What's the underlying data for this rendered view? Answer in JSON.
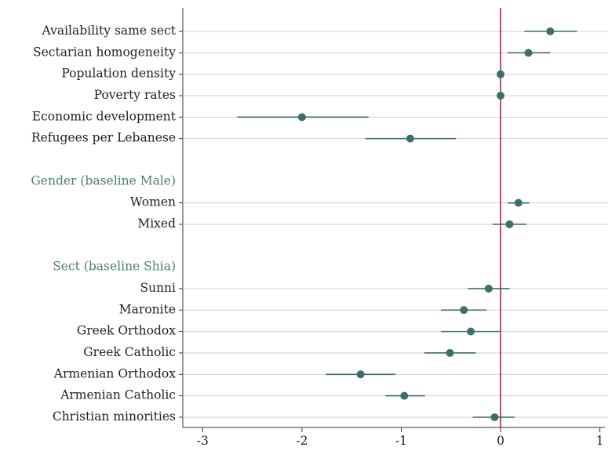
{
  "chart_data": {
    "type": "coefplot",
    "xlim": [
      -3.2,
      1.05
    ],
    "xticks": [
      -3,
      -2,
      -1,
      0,
      1
    ],
    "refline": 0,
    "refline_color": "#a6173f",
    "color": "#3d6e6b",
    "header_color": "#4d7d79",
    "grid": true,
    "groups": [
      {
        "title": null,
        "categories": [
          "Availability same sect",
          "Sectarian homogeneity",
          "Population density",
          "Poverty rates",
          "Economic development",
          "Refugees per Lebanese"
        ],
        "values": [
          0.5,
          0.28,
          0.0,
          0.0,
          -2.0,
          -0.91
        ],
        "lower": [
          0.24,
          0.07,
          0.0,
          0.0,
          -2.65,
          -1.36
        ],
        "upper": [
          0.77,
          0.5,
          0.0,
          0.0,
          -1.33,
          -0.45
        ]
      },
      {
        "title": "Gender (baseline Male)",
        "categories": [
          "Women",
          "Mixed"
        ],
        "values": [
          0.18,
          0.09
        ],
        "lower": [
          0.07,
          -0.08
        ],
        "upper": [
          0.29,
          0.26
        ]
      },
      {
        "title": "Sect (baseline Shia)",
        "categories": [
          "Sunni",
          "Maronite",
          "Greek Orthodox",
          "Greek Catholic",
          "Armenian Orthodox",
          "Armenian Catholic",
          "Christian minorities"
        ],
        "values": [
          -0.12,
          -0.37,
          -0.3,
          -0.51,
          -1.41,
          -0.97,
          -0.06
        ],
        "lower": [
          -0.33,
          -0.6,
          -0.6,
          -0.77,
          -1.76,
          -1.16,
          -0.28
        ],
        "upper": [
          0.09,
          -0.14,
          0.0,
          -0.25,
          -1.06,
          -0.76,
          0.14
        ]
      }
    ]
  }
}
